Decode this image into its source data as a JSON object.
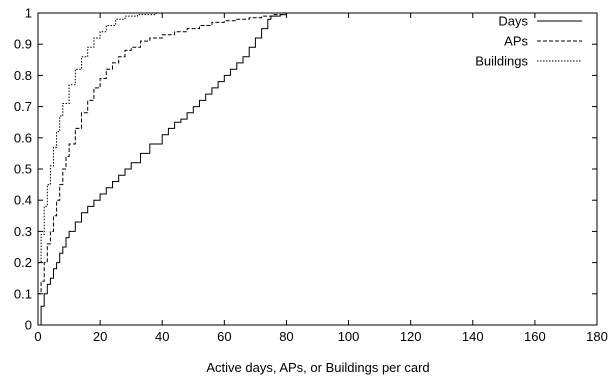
{
  "chart_data": {
    "type": "line",
    "title": "",
    "xlabel": "Active days, APs, or Buildings per card",
    "ylabel": "",
    "xlim": [
      0,
      180
    ],
    "ylim": [
      0,
      1
    ],
    "x_ticks": [
      0,
      20,
      40,
      60,
      80,
      100,
      120,
      140,
      160,
      180
    ],
    "y_ticks": [
      0,
      0.1,
      0.2,
      0.3,
      0.4,
      0.5,
      0.6,
      0.7,
      0.8,
      0.9,
      1
    ],
    "grid": false,
    "legend_position": "top-right",
    "step": true,
    "series": [
      {
        "name": "Days",
        "dash": "solid",
        "points": [
          [
            1,
            0
          ],
          [
            1,
            0.06
          ],
          [
            2,
            0.06
          ],
          [
            2,
            0.1
          ],
          [
            3,
            0.13
          ],
          [
            4,
            0.15
          ],
          [
            5,
            0.18
          ],
          [
            6,
            0.2
          ],
          [
            7,
            0.23
          ],
          [
            8,
            0.25
          ],
          [
            9,
            0.28
          ],
          [
            10,
            0.3
          ],
          [
            12,
            0.33
          ],
          [
            14,
            0.36
          ],
          [
            16,
            0.38
          ],
          [
            18,
            0.4
          ],
          [
            20,
            0.42
          ],
          [
            22,
            0.44
          ],
          [
            24,
            0.46
          ],
          [
            26,
            0.48
          ],
          [
            28,
            0.5
          ],
          [
            30,
            0.52
          ],
          [
            33,
            0.55
          ],
          [
            36,
            0.58
          ],
          [
            40,
            0.61
          ],
          [
            42,
            0.63
          ],
          [
            44,
            0.65
          ],
          [
            46,
            0.66
          ],
          [
            48,
            0.68
          ],
          [
            50,
            0.7
          ],
          [
            52,
            0.72
          ],
          [
            54,
            0.74
          ],
          [
            56,
            0.76
          ],
          [
            58,
            0.78
          ],
          [
            60,
            0.8
          ],
          [
            62,
            0.82
          ],
          [
            64,
            0.84
          ],
          [
            66,
            0.86
          ],
          [
            68,
            0.89
          ],
          [
            70,
            0.92
          ],
          [
            72,
            0.95
          ],
          [
            74,
            0.98
          ],
          [
            75,
            0.99
          ],
          [
            78,
            0.995
          ],
          [
            80,
            1
          ],
          [
            161,
            1
          ]
        ]
      },
      {
        "name": "APs",
        "dash": "dashed",
        "points": [
          [
            0,
            0
          ],
          [
            0,
            0.1
          ],
          [
            1,
            0.14
          ],
          [
            2,
            0.2
          ],
          [
            3,
            0.26
          ],
          [
            4,
            0.3
          ],
          [
            5,
            0.35
          ],
          [
            6,
            0.4
          ],
          [
            7,
            0.45
          ],
          [
            8,
            0.5
          ],
          [
            9,
            0.54
          ],
          [
            10,
            0.58
          ],
          [
            12,
            0.63
          ],
          [
            14,
            0.68
          ],
          [
            16,
            0.72
          ],
          [
            18,
            0.76
          ],
          [
            20,
            0.79
          ],
          [
            22,
            0.82
          ],
          [
            24,
            0.84
          ],
          [
            26,
            0.86
          ],
          [
            28,
            0.88
          ],
          [
            30,
            0.89
          ],
          [
            33,
            0.91
          ],
          [
            36,
            0.92
          ],
          [
            40,
            0.93
          ],
          [
            44,
            0.94
          ],
          [
            48,
            0.95
          ],
          [
            52,
            0.96
          ],
          [
            56,
            0.97
          ],
          [
            60,
            0.975
          ],
          [
            64,
            0.98
          ],
          [
            68,
            0.985
          ],
          [
            72,
            0.99
          ],
          [
            76,
            0.995
          ],
          [
            80,
            1
          ],
          [
            161,
            1
          ]
        ]
      },
      {
        "name": "Buildings",
        "dash": "dotted",
        "points": [
          [
            0,
            0
          ],
          [
            0,
            0.2
          ],
          [
            1,
            0.29
          ],
          [
            2,
            0.38
          ],
          [
            3,
            0.45
          ],
          [
            4,
            0.51
          ],
          [
            5,
            0.57
          ],
          [
            6,
            0.62
          ],
          [
            7,
            0.67
          ],
          [
            8,
            0.71
          ],
          [
            10,
            0.77
          ],
          [
            12,
            0.82
          ],
          [
            14,
            0.86
          ],
          [
            16,
            0.89
          ],
          [
            18,
            0.92
          ],
          [
            20,
            0.94
          ],
          [
            22,
            0.96
          ],
          [
            25,
            0.98
          ],
          [
            28,
            0.99
          ],
          [
            32,
            0.995
          ],
          [
            38,
            1
          ],
          [
            161,
            1
          ]
        ]
      }
    ]
  }
}
